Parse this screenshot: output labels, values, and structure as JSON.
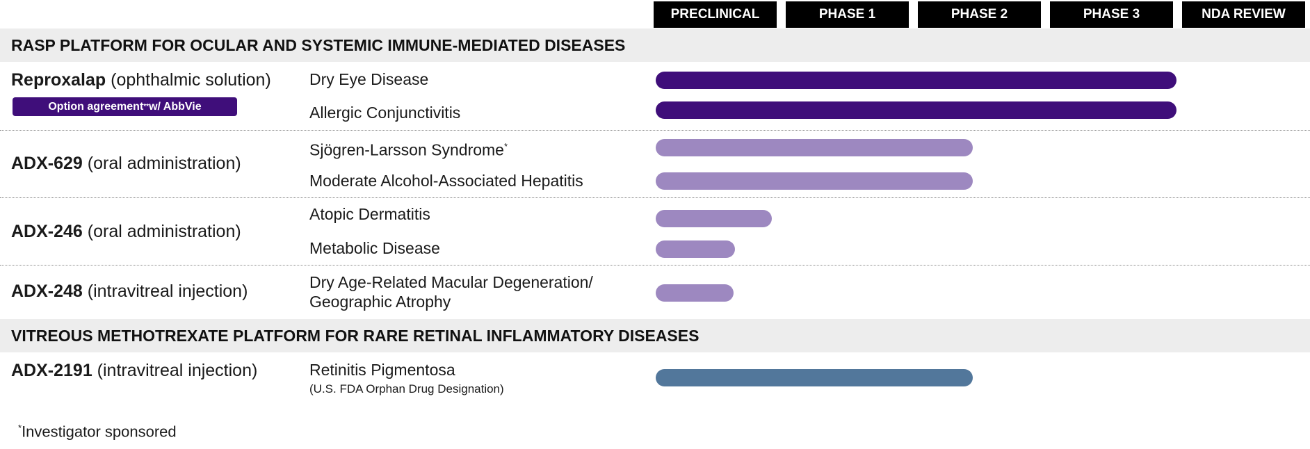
{
  "phases": [
    "PRECLINICAL",
    "PHASE 1",
    "PHASE 2",
    "PHASE 3",
    "NDA REVIEW"
  ],
  "sections": [
    "RASP PLATFORM FOR OCULAR AND SYSTEMIC IMMUNE-MEDIATED DISEASES",
    "VITREOUS METHOTREXATE PLATFORM FOR RARE RETINAL INFLAMMATORY DISEASES"
  ],
  "products": [
    {
      "name": "Reproxalap",
      "route": " (ophthalmic solution)"
    },
    {
      "name": "ADX-629",
      "route": " (oral administration)"
    },
    {
      "name": "ADX-246",
      "route": " (oral administration)"
    },
    {
      "name": "ADX-248",
      "route": " (intravitreal injection)"
    },
    {
      "name": "ADX-2191",
      "route": " (intravitreal injection)"
    }
  ],
  "badge": {
    "prefix": "Option agreement",
    "marker": "**",
    "suffix": " w/ AbbVie"
  },
  "indications": [
    {
      "text": "Dry Eye Disease"
    },
    {
      "text": "Allergic Conjunctivitis"
    },
    {
      "text": "Sjögren-Larsson Syndrome",
      "marker": "*"
    },
    {
      "text": "Moderate Alcohol-Associated Hepatitis"
    },
    {
      "text": "Atopic Dermatitis"
    },
    {
      "text": "Metabolic Disease"
    },
    {
      "line1": "Dry Age-Related Macular Degeneration/",
      "line2": "Geographic Atrophy"
    },
    {
      "text": "Retinitis Pigmentosa",
      "sub": "(U.S. FDA Orphan Drug Designation)"
    }
  ],
  "progress_phases": [
    3.94,
    3.94,
    2.4,
    2.4,
    0.88,
    0.6,
    0.59,
    2.4
  ],
  "colors": {
    "dark": "#3f0e7a",
    "light": "#9d88c0",
    "blue": "#52779b",
    "band": "#ededed"
  },
  "footnote": {
    "marker": "*",
    "text": "Investigator sponsored"
  }
}
